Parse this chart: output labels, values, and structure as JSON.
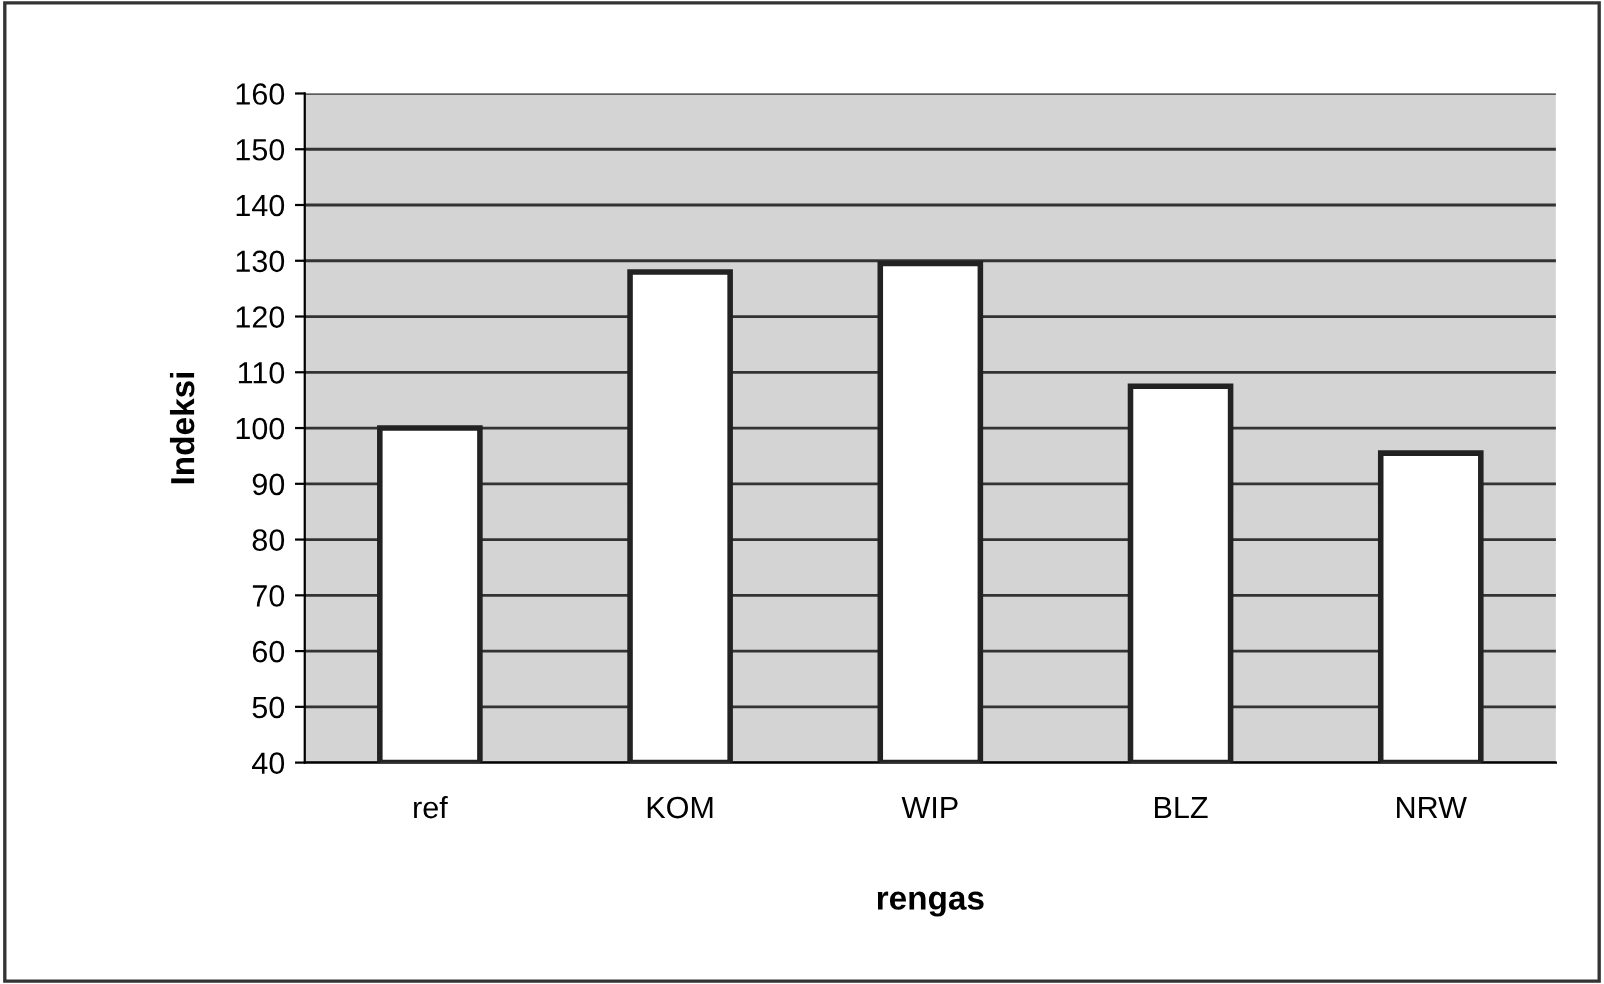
{
  "chart_data": {
    "type": "bar",
    "xlabel": "rengas",
    "ylabel": "Indeksi",
    "categories": [
      "ref",
      "KOM",
      "WIP",
      "BLZ",
      "NRW"
    ],
    "values": [
      100,
      128,
      129.5,
      107.5,
      95.5
    ],
    "color": "#ffffff",
    "ylim": [
      40,
      160
    ],
    "yticks": [
      40,
      50,
      60,
      70,
      80,
      90,
      100,
      110,
      120,
      130,
      140,
      150,
      160
    ],
    "grid": "y"
  }
}
